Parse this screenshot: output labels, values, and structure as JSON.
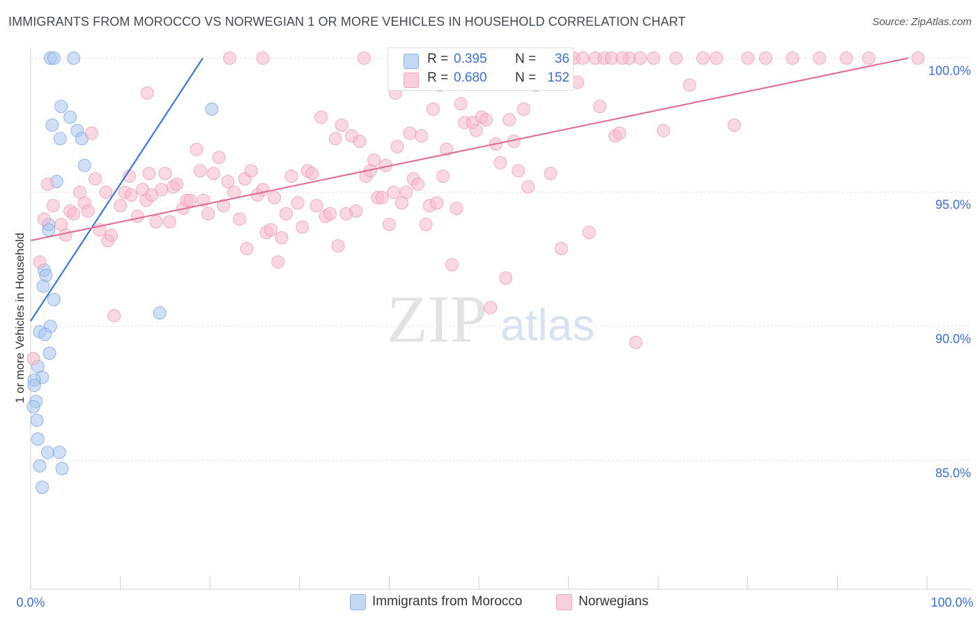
{
  "title": "IMMIGRANTS FROM MOROCCO VS NORWEGIAN 1 OR MORE VEHICLES IN HOUSEHOLD CORRELATION CHART",
  "source": "Source: ZipAtlas.com",
  "watermark": {
    "zip": "ZIP",
    "atlas": "atlas"
  },
  "stats_legend": {
    "r_label": "R =",
    "n_label": "N =",
    "rows": [
      {
        "r": "0.395",
        "n": "36",
        "color": "#a9c4ee"
      },
      {
        "r": "0.680",
        "n": "152",
        "color": "#f5b8cb"
      }
    ]
  },
  "chart_data": {
    "type": "scatter",
    "title": "IMMIGRANTS FROM MOROCCO VS NORWEGIAN 1 OR MORE VEHICLES IN HOUSEHOLD CORRELATION CHART",
    "xlabel": "",
    "ylabel": "1 or more Vehicles in Household",
    "xlim": [
      0,
      100
    ],
    "ylim": [
      80.2,
      100.4
    ],
    "x_tick_labels": [
      "0.0%",
      "100.0%"
    ],
    "y_ticks": [
      {
        "value": 85,
        "label": "85.0%"
      },
      {
        "value": 90,
        "label": "90.0%"
      },
      {
        "value": 95,
        "label": "95.0%"
      },
      {
        "value": 100,
        "label": "100.0%"
      }
    ],
    "series": [
      {
        "name": "Immigrants from Morocco",
        "color": "#a9c4ee",
        "stroke": "#6e98dd",
        "line_color": "#3a77d2",
        "trend": {
          "x1": 0.0,
          "y1": 90.2,
          "x2": 19.2,
          "y2": 100.0
        },
        "points": [
          [
            2.2,
            100.0
          ],
          [
            2.6,
            100.0
          ],
          [
            4.8,
            100.0
          ],
          [
            3.4,
            98.2
          ],
          [
            4.4,
            97.8
          ],
          [
            2.4,
            97.5
          ],
          [
            3.3,
            97.0
          ],
          [
            5.2,
            97.3
          ],
          [
            5.7,
            97.0
          ],
          [
            6.0,
            96.0
          ],
          [
            2.9,
            95.4
          ],
          [
            2.0,
            93.8
          ],
          [
            2.0,
            93.6
          ],
          [
            1.5,
            92.1
          ],
          [
            1.7,
            91.9
          ],
          [
            1.4,
            91.5
          ],
          [
            2.6,
            91.0
          ],
          [
            2.2,
            90.0
          ],
          [
            1.0,
            89.8
          ],
          [
            1.6,
            89.7
          ],
          [
            2.1,
            89.0
          ],
          [
            0.8,
            88.5
          ],
          [
            1.3,
            88.1
          ],
          [
            0.4,
            88.0
          ],
          [
            0.4,
            87.8
          ],
          [
            0.6,
            87.2
          ],
          [
            0.3,
            87.0
          ],
          [
            0.7,
            86.5
          ],
          [
            0.8,
            85.8
          ],
          [
            1.9,
            85.3
          ],
          [
            3.2,
            85.3
          ],
          [
            1.0,
            84.8
          ],
          [
            3.5,
            84.7
          ],
          [
            1.3,
            84.0
          ],
          [
            14.4,
            90.5
          ],
          [
            20.2,
            98.1
          ]
        ]
      },
      {
        "name": "Norwegians",
        "color": "#f5b8cb",
        "stroke": "#ec8fac",
        "line_color": "#e0709a",
        "trend": {
          "x1": 0.0,
          "y1": 93.2,
          "x2": 97.9,
          "y2": 100.0
        },
        "points": [
          [
            1.0,
            92.4
          ],
          [
            0.3,
            88.8
          ],
          [
            1.5,
            94.0
          ],
          [
            1.9,
            95.3
          ],
          [
            2.5,
            94.5
          ],
          [
            3.4,
            93.8
          ],
          [
            3.9,
            93.4
          ],
          [
            4.4,
            94.3
          ],
          [
            4.8,
            94.2
          ],
          [
            5.5,
            95.0
          ],
          [
            6.0,
            94.6
          ],
          [
            6.4,
            94.3
          ],
          [
            7.2,
            95.5
          ],
          [
            7.7,
            93.6
          ],
          [
            8.4,
            95.0
          ],
          [
            8.6,
            93.2
          ],
          [
            9.0,
            93.4
          ],
          [
            9.3,
            90.4
          ],
          [
            10.0,
            94.5
          ],
          [
            10.5,
            95.0
          ],
          [
            11.0,
            95.6
          ],
          [
            11.2,
            94.9
          ],
          [
            11.9,
            94.1
          ],
          [
            12.5,
            95.1
          ],
          [
            12.9,
            94.7
          ],
          [
            13.2,
            95.7
          ],
          [
            13.5,
            94.9
          ],
          [
            14.0,
            93.9
          ],
          [
            14.6,
            95.1
          ],
          [
            15.0,
            95.7
          ],
          [
            15.5,
            93.9
          ],
          [
            15.9,
            95.2
          ],
          [
            16.3,
            95.3
          ],
          [
            17.0,
            94.4
          ],
          [
            17.4,
            94.7
          ],
          [
            17.8,
            94.7
          ],
          [
            18.5,
            96.6
          ],
          [
            18.9,
            95.8
          ],
          [
            19.3,
            94.7
          ],
          [
            19.8,
            94.2
          ],
          [
            20.4,
            95.7
          ],
          [
            21.0,
            96.3
          ],
          [
            21.5,
            94.5
          ],
          [
            22.0,
            95.4
          ],
          [
            22.7,
            95.0
          ],
          [
            23.3,
            94.0
          ],
          [
            23.9,
            95.5
          ],
          [
            24.1,
            92.9
          ],
          [
            24.6,
            95.8
          ],
          [
            25.3,
            94.9
          ],
          [
            25.9,
            95.1
          ],
          [
            26.3,
            93.5
          ],
          [
            26.8,
            93.6
          ],
          [
            27.2,
            94.8
          ],
          [
            27.6,
            92.4
          ],
          [
            28.0,
            93.3
          ],
          [
            28.5,
            94.2
          ],
          [
            29.1,
            95.6
          ],
          [
            29.8,
            94.6
          ],
          [
            30.3,
            93.7
          ],
          [
            30.9,
            95.8
          ],
          [
            31.4,
            95.7
          ],
          [
            31.9,
            94.5
          ],
          [
            32.4,
            97.8
          ],
          [
            32.9,
            94.1
          ],
          [
            33.4,
            94.2
          ],
          [
            34.0,
            97.0
          ],
          [
            34.3,
            93.0
          ],
          [
            34.7,
            97.5
          ],
          [
            35.2,
            94.2
          ],
          [
            35.8,
            97.1
          ],
          [
            36.3,
            94.3
          ],
          [
            36.7,
            96.9
          ],
          [
            37.4,
            95.6
          ],
          [
            37.9,
            95.8
          ],
          [
            38.3,
            96.2
          ],
          [
            38.7,
            94.8
          ],
          [
            39.2,
            94.8
          ],
          [
            39.6,
            96.0
          ],
          [
            40.0,
            93.8
          ],
          [
            40.5,
            95.0
          ],
          [
            40.9,
            96.7
          ],
          [
            41.4,
            94.6
          ],
          [
            41.9,
            95.0
          ],
          [
            42.3,
            97.2
          ],
          [
            42.7,
            95.5
          ],
          [
            43.2,
            95.3
          ],
          [
            43.6,
            97.1
          ],
          [
            44.1,
            93.8
          ],
          [
            44.5,
            94.5
          ],
          [
            44.9,
            98.1
          ],
          [
            45.3,
            94.6
          ],
          [
            45.6,
            99.0
          ],
          [
            46.0,
            95.6
          ],
          [
            46.4,
            96.6
          ],
          [
            47.0,
            92.3
          ],
          [
            47.5,
            94.4
          ],
          [
            48.0,
            98.3
          ],
          [
            48.4,
            97.6
          ],
          [
            48.9,
            99.4
          ],
          [
            49.3,
            97.6
          ],
          [
            49.7,
            97.3
          ],
          [
            50.3,
            97.8
          ],
          [
            50.8,
            97.7
          ],
          [
            51.3,
            90.7
          ],
          [
            51.9,
            96.8
          ],
          [
            52.4,
            96.1
          ],
          [
            53.0,
            91.8
          ],
          [
            53.4,
            97.7
          ],
          [
            53.9,
            96.9
          ],
          [
            54.4,
            95.8
          ],
          [
            55.0,
            98.1
          ],
          [
            55.5,
            95.2
          ],
          [
            56.3,
            99.0
          ],
          [
            57.0,
            100.0
          ],
          [
            57.5,
            99.1
          ],
          [
            58.0,
            95.7
          ],
          [
            58.6,
            100.0
          ],
          [
            59.2,
            92.9
          ],
          [
            60.0,
            100.0
          ],
          [
            60.6,
            100.0
          ],
          [
            61.0,
            99.1
          ],
          [
            61.6,
            100.0
          ],
          [
            62.3,
            93.5
          ],
          [
            63.0,
            100.0
          ],
          [
            63.5,
            98.2
          ],
          [
            64.0,
            100.0
          ],
          [
            64.8,
            100.0
          ],
          [
            65.2,
            97.1
          ],
          [
            65.7,
            97.2
          ],
          [
            66.8,
            100.0
          ],
          [
            67.5,
            89.4
          ],
          [
            68.0,
            100.0
          ],
          [
            69.5,
            100.0
          ],
          [
            70.6,
            97.3
          ],
          [
            72.0,
            100.0
          ],
          [
            73.5,
            99.0
          ],
          [
            75.0,
            100.0
          ],
          [
            76.5,
            100.0
          ],
          [
            78.5,
            97.5
          ],
          [
            80.0,
            100.0
          ],
          [
            82.0,
            100.0
          ],
          [
            85.0,
            100.0
          ],
          [
            88.0,
            100.0
          ],
          [
            91.0,
            100.0
          ],
          [
            93.5,
            100.0
          ],
          [
            37.2,
            100.0
          ],
          [
            22.2,
            100.0
          ],
          [
            25.9,
            100.0
          ],
          [
            13.0,
            98.7
          ],
          [
            6.8,
            97.2
          ],
          [
            40.7,
            98.7
          ],
          [
            45.8,
            100.0
          ],
          [
            52.0,
            99.7
          ],
          [
            66.0,
            100.0
          ],
          [
            99.0,
            100.0
          ]
        ]
      }
    ],
    "legend": [
      "Immigrants from Morocco",
      "Norwegians"
    ],
    "legend_position": "bottom-center"
  }
}
